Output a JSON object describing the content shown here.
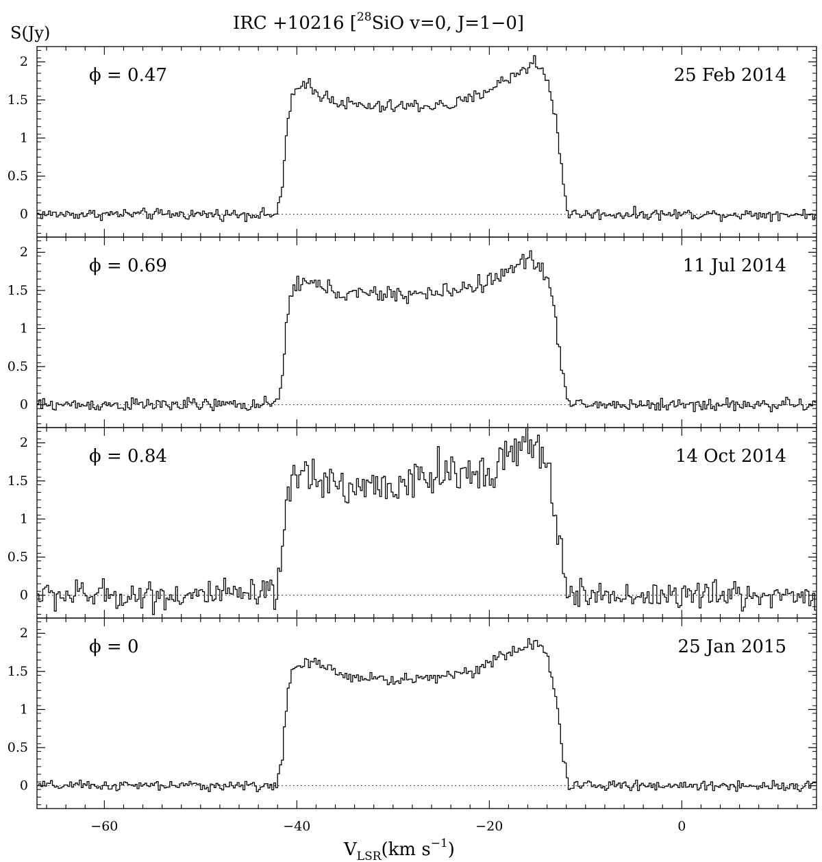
{
  "chart_data": {
    "type": "line",
    "title": "IRC +10216 [²⁸SiO v=0, J=1−0]",
    "title_parts": {
      "main": "IRC +10216 [",
      "sup": "28",
      "rest": "SiO v=0, J=1−0]"
    },
    "ylabel": "S(Jy)",
    "xlabel": {
      "main": "V",
      "sub": "LSR",
      "rest": "(km s",
      "sup": "−1",
      "close": ")"
    },
    "xlim": [
      -67,
      14
    ],
    "ylim": [
      -0.3,
      2.2
    ],
    "xticks": [
      -60,
      -40,
      -20,
      0
    ],
    "yticks": [
      0,
      0.5,
      1,
      1.5,
      2
    ],
    "ytick_labels": [
      "0",
      "0.5",
      "1",
      "1.5",
      "2"
    ],
    "zero_line": "dotted",
    "line_color": "#000000",
    "panels": [
      {
        "phase_label": "ϕ = 0.47",
        "date": "25 Feb 2014",
        "noise": 0.05,
        "profile": [
          [
            -42.0,
            0.0
          ],
          [
            -41.5,
            0.35
          ],
          [
            -41.0,
            1.2
          ],
          [
            -40.5,
            1.55
          ],
          [
            -40.0,
            1.62
          ],
          [
            -39.0,
            1.66
          ],
          [
            -38.0,
            1.6
          ],
          [
            -35.0,
            1.45
          ],
          [
            -32.0,
            1.4
          ],
          [
            -28.0,
            1.42
          ],
          [
            -24.0,
            1.43
          ],
          [
            -22.0,
            1.5
          ],
          [
            -20.0,
            1.65
          ],
          [
            -18.0,
            1.78
          ],
          [
            -16.0,
            1.95
          ],
          [
            -15.0,
            1.92
          ],
          [
            -14.0,
            1.8
          ],
          [
            -13.0,
            1.2
          ],
          [
            -12.2,
            0.3
          ],
          [
            -11.8,
            0.0
          ]
        ],
        "peaks": [
          [
            -15.5,
            2.08
          ],
          [
            -38.9,
            1.78
          ]
        ]
      },
      {
        "phase_label": "ϕ = 0.69",
        "date": "11 Jul 2014",
        "noise": 0.06,
        "profile": [
          [
            -42.0,
            0.0
          ],
          [
            -41.5,
            0.35
          ],
          [
            -41.0,
            1.2
          ],
          [
            -40.5,
            1.5
          ],
          [
            -40.0,
            1.6
          ],
          [
            -38.0,
            1.58
          ],
          [
            -35.0,
            1.45
          ],
          [
            -30.0,
            1.45
          ],
          [
            -26.0,
            1.45
          ],
          [
            -22.0,
            1.55
          ],
          [
            -20.0,
            1.62
          ],
          [
            -18.0,
            1.75
          ],
          [
            -16.0,
            1.9
          ],
          [
            -15.0,
            1.88
          ],
          [
            -14.0,
            1.7
          ],
          [
            -13.0,
            1.0
          ],
          [
            -12.2,
            0.3
          ],
          [
            -11.8,
            0.0
          ]
        ],
        "peaks": [
          [
            -15.8,
            2.02
          ]
        ]
      },
      {
        "phase_label": "ϕ = 0.84",
        "date": "14 Oct 2014",
        "noise": 0.14,
        "profile": [
          [
            -42.0,
            0.1
          ],
          [
            -41.5,
            0.5
          ],
          [
            -41.0,
            1.15
          ],
          [
            -40.5,
            1.5
          ],
          [
            -40.0,
            1.58
          ],
          [
            -38.0,
            1.6
          ],
          [
            -35.0,
            1.4
          ],
          [
            -30.0,
            1.45
          ],
          [
            -26.0,
            1.5
          ],
          [
            -22.0,
            1.6
          ],
          [
            -20.0,
            1.7
          ],
          [
            -18.0,
            1.8
          ],
          [
            -16.0,
            1.9
          ],
          [
            -15.0,
            1.88
          ],
          [
            -14.0,
            1.7
          ],
          [
            -13.0,
            1.0
          ],
          [
            -12.2,
            0.3
          ],
          [
            -11.8,
            0.0
          ]
        ],
        "peaks": [
          [
            -16.2,
            2.25
          ],
          [
            -17.5,
            2.05
          ],
          [
            -25.5,
            1.95
          ]
        ]
      },
      {
        "phase_label": "ϕ = 0",
        "date": "25 Jan 2015",
        "noise": 0.045,
        "profile": [
          [
            -42.0,
            0.05
          ],
          [
            -41.5,
            0.35
          ],
          [
            -41.0,
            1.2
          ],
          [
            -40.5,
            1.5
          ],
          [
            -40.0,
            1.58
          ],
          [
            -38.0,
            1.6
          ],
          [
            -35.0,
            1.45
          ],
          [
            -30.0,
            1.38
          ],
          [
            -26.0,
            1.42
          ],
          [
            -22.0,
            1.5
          ],
          [
            -20.0,
            1.62
          ],
          [
            -18.0,
            1.72
          ],
          [
            -16.0,
            1.85
          ],
          [
            -15.0,
            1.85
          ],
          [
            -14.0,
            1.72
          ],
          [
            -13.0,
            1.1
          ],
          [
            -12.2,
            0.3
          ],
          [
            -11.8,
            0.05
          ]
        ],
        "peaks": [
          [
            -16.0,
            1.93
          ]
        ]
      }
    ]
  }
}
